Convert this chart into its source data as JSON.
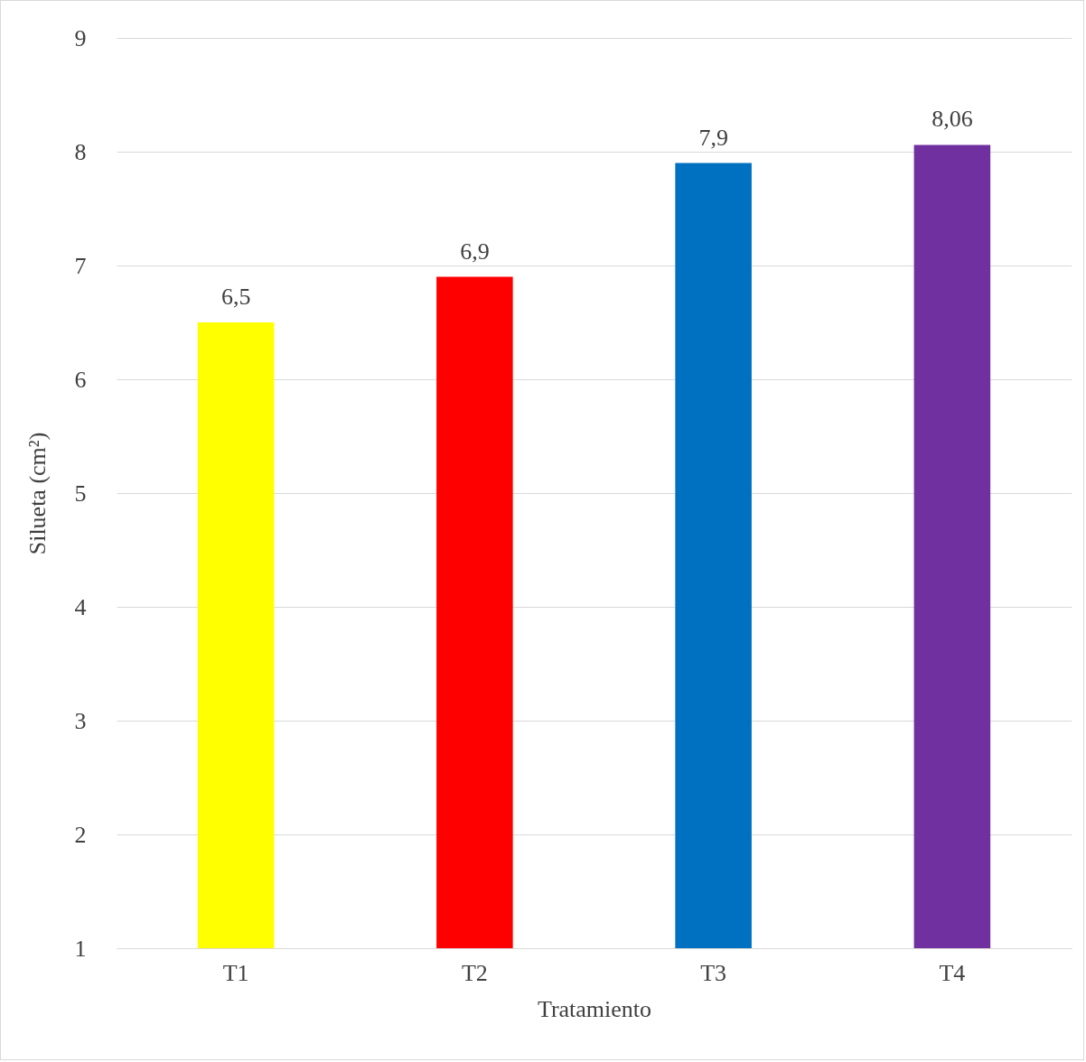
{
  "chart_data": {
    "type": "bar",
    "xlabel": "Tratamiento",
    "ylabel": "Silueta (cm²)",
    "categories": [
      "T1",
      "T2",
      "T3",
      "T4"
    ],
    "values": [
      6.5,
      6.9,
      7.9,
      8.06
    ],
    "colors": [
      "#ffff00",
      "#ff0000",
      "#0070c0",
      "#7030a0"
    ],
    "value_labels": [
      "6,5",
      "6,9",
      "7,9",
      "8,06"
    ],
    "ylim": [
      1,
      9
    ],
    "yticks": [
      1,
      2,
      3,
      4,
      5,
      6,
      7,
      8,
      9
    ],
    "grid": "y"
  }
}
